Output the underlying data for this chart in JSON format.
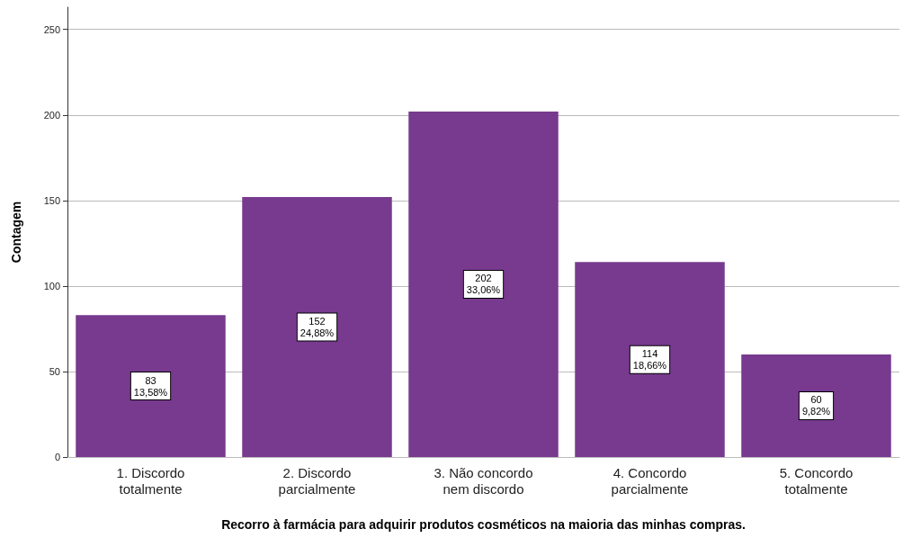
{
  "chart_data": {
    "type": "bar",
    "xlabel": "Recorro à farmácia para adquirir produtos cosméticos na maioria das minhas compras.",
    "ylabel": "Contagem",
    "categories": [
      "1. Discordo\ntotalmente",
      "2. Discordo\nparcialmente",
      "3. Não concordo\nnem discordo",
      "4. Concordo\nparcialmente",
      "5. Concordo\ntotalmente"
    ],
    "values": [
      83,
      152,
      202,
      114,
      60
    ],
    "value_labels": [
      "83\n13,58%",
      "152\n24,88%",
      "202\n33,06%",
      "114\n18,66%",
      "60\n9,82%"
    ],
    "color": "#773a8e",
    "ylim": [
      0,
      263
    ],
    "yticks": [
      0,
      50,
      100,
      150,
      200,
      250
    ],
    "grid": "y"
  }
}
